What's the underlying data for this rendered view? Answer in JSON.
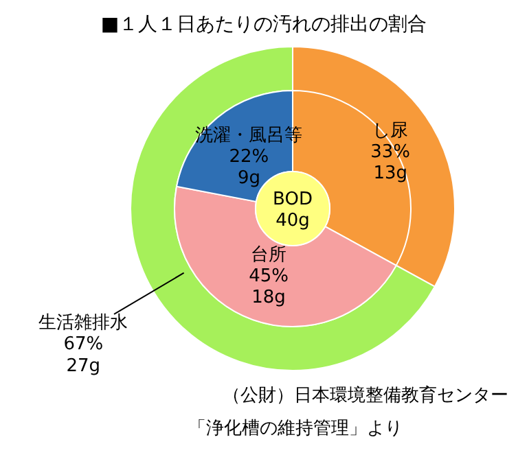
{
  "chart_data": [
    {
      "type": "pie",
      "title": "■１人１日あたりの汚れの排出の割合",
      "categories": [
        "し尿",
        "生活雑排水"
      ],
      "values": [
        33,
        67
      ],
      "colors": [
        "#f79a3a",
        "#a6f05a"
      ],
      "value_labels": [
        "33%\n13g",
        "67%\n27g"
      ],
      "annotations": [
        "（公財）日本環境整備教育センター",
        "「浄化槽の維持管理」より"
      ]
    },
    {
      "type": "donut",
      "categories": [
        null,
        "台所",
        "洗濯・風呂等"
      ],
      "values": [
        33,
        45,
        22
      ],
      "colors": [
        "#f79a3a",
        "#f6a0a0",
        "#2e6fb4"
      ],
      "value_labels": [
        null,
        "45%\n18g",
        "22%\n9g"
      ],
      "annotations": [
        "BOD\n40g"
      ]
    }
  ]
}
